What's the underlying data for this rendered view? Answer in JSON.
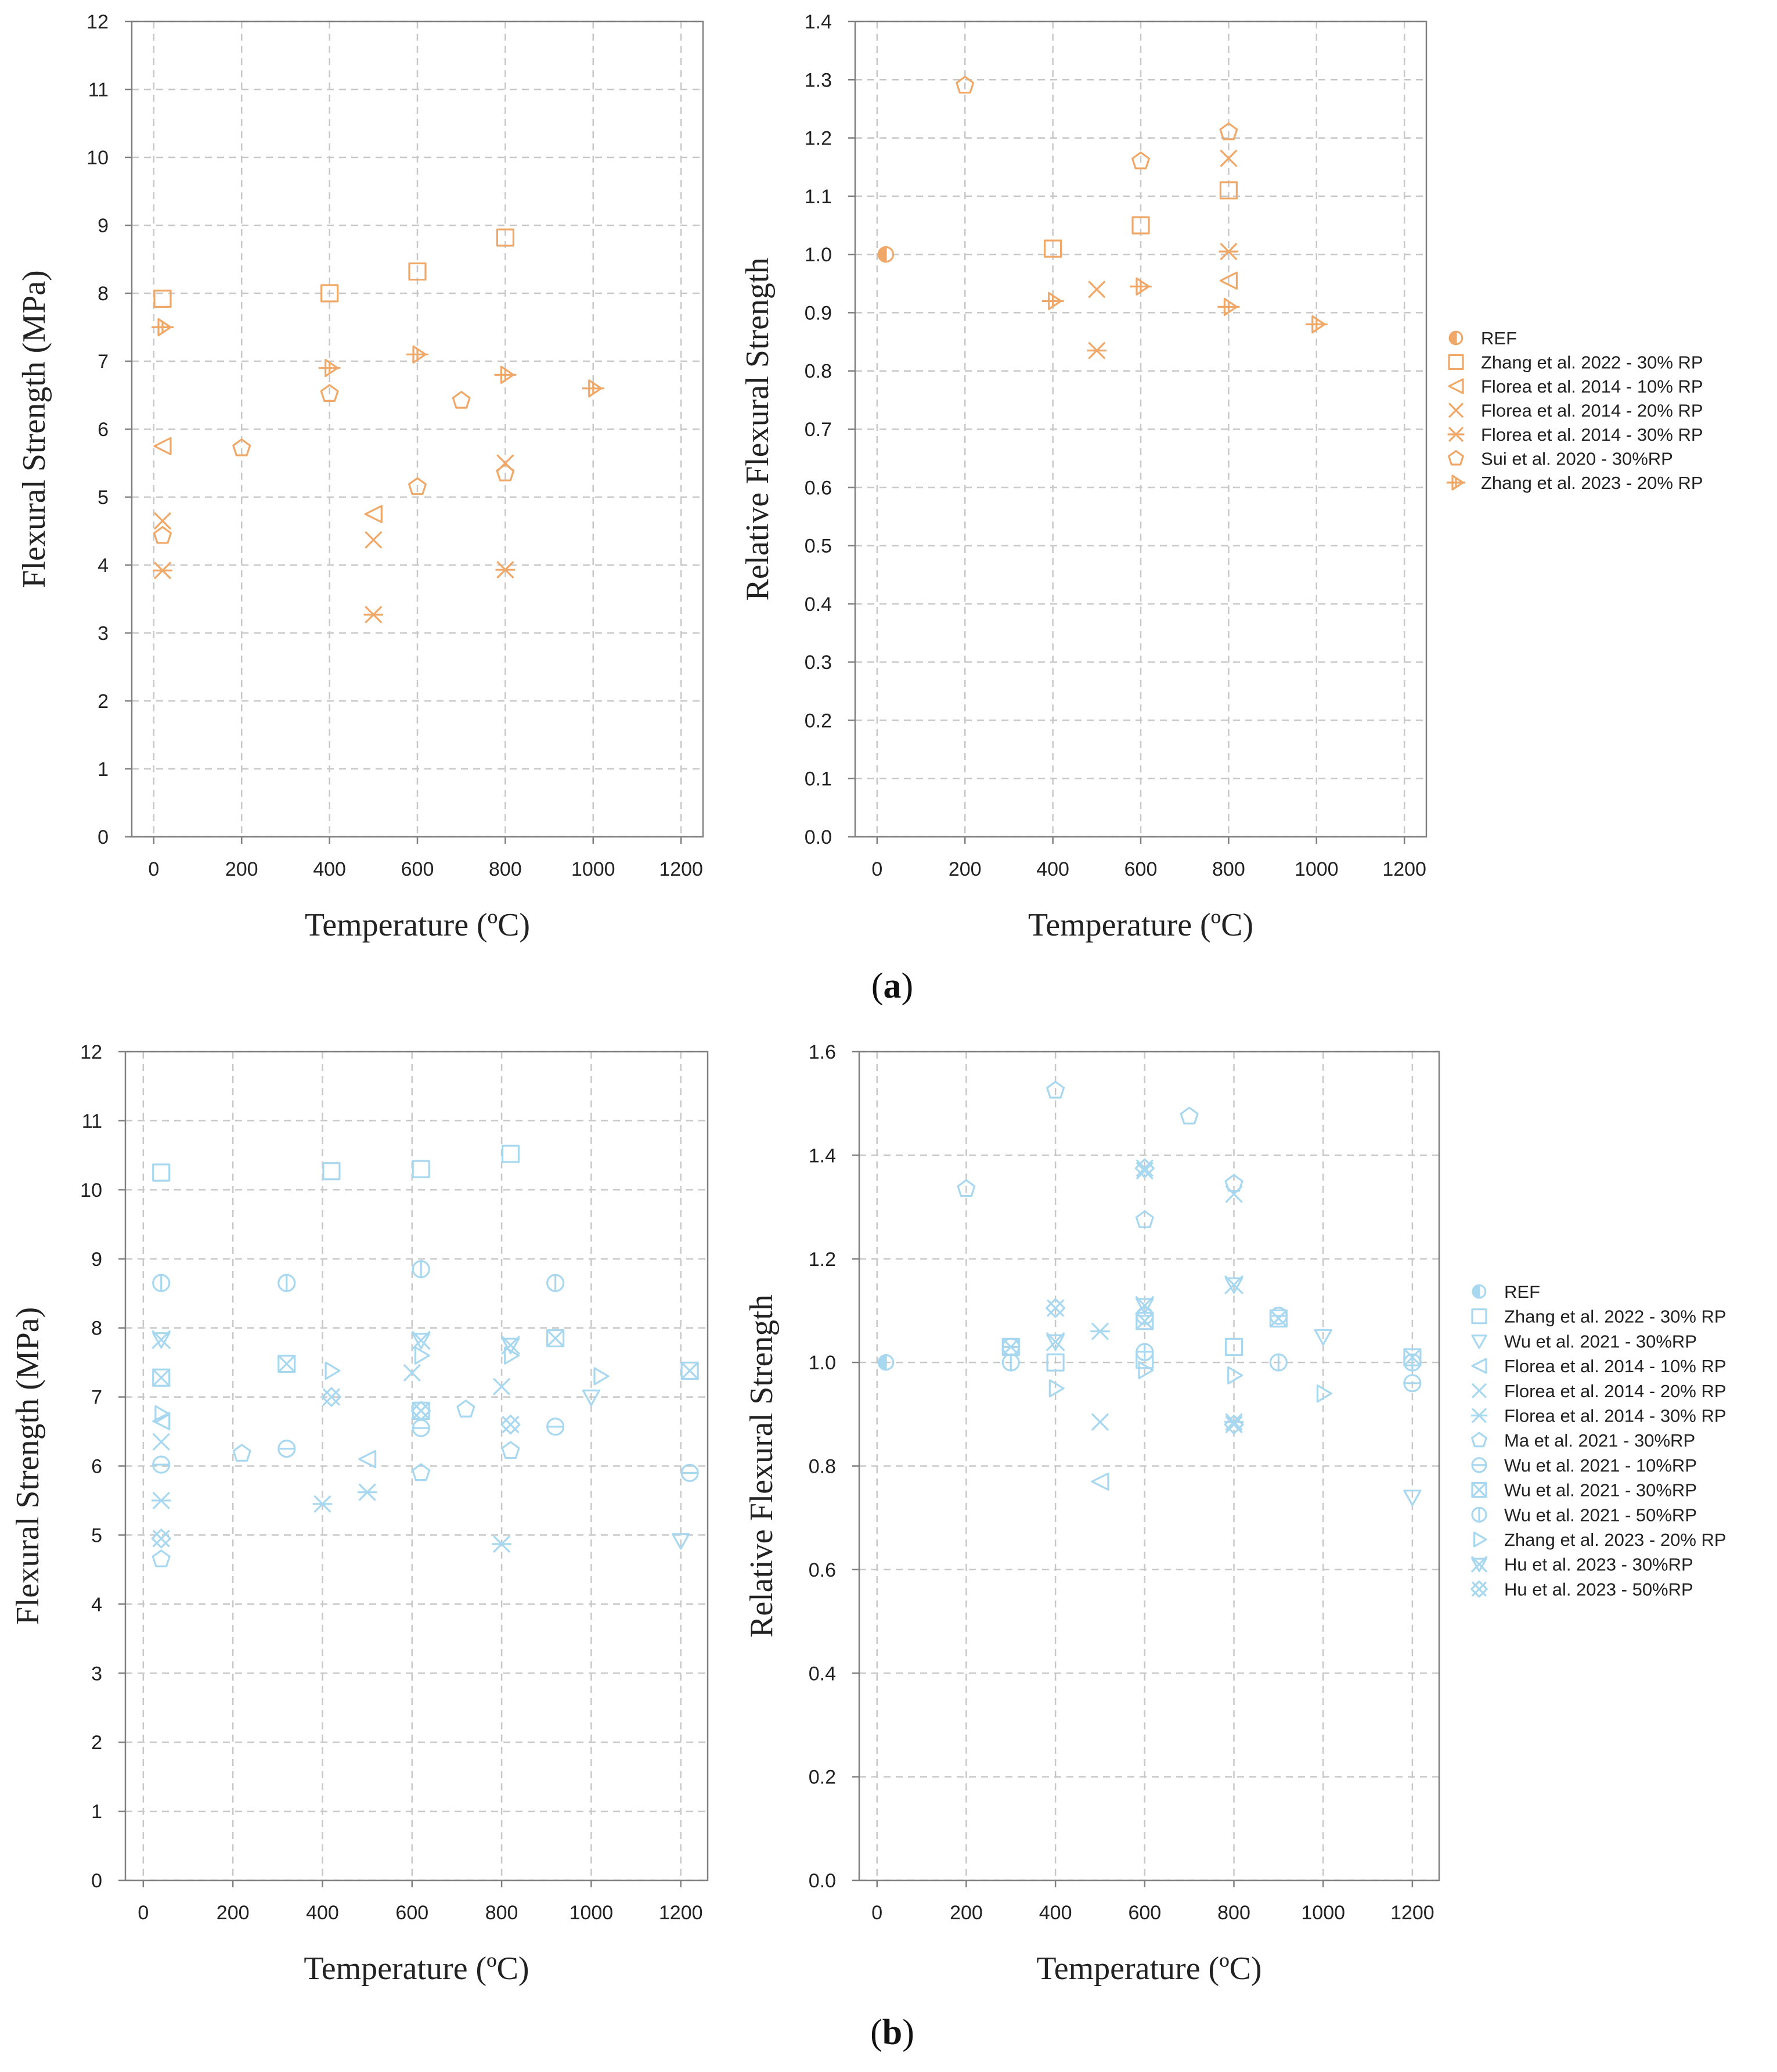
{
  "figure": {
    "panel_labels": [
      {
        "open": "(",
        "letter": "a",
        "close": ")"
      },
      {
        "open": "(",
        "letter": "b",
        "close": ")"
      }
    ],
    "colors": {
      "orange": "#F0A868",
      "blue": "#A8D8F0",
      "grid": "#c8c8c8",
      "frame": "#808080",
      "text": "#222222"
    }
  },
  "chart_data": [
    {
      "id": "a-left",
      "type": "scatter",
      "color": "#F0A868",
      "title": "",
      "xlabel": "Temperature (ºC)",
      "ylabel": "Flexural Strength (MPa)",
      "xlim": [
        -50,
        1250
      ],
      "ylim": [
        0,
        12
      ],
      "xticks": [
        0,
        200,
        400,
        600,
        800,
        1000,
        1200
      ],
      "xtick_labels": [
        "0",
        "200",
        "400",
        "600",
        "800",
        "1000",
        "1200"
      ],
      "yticks": [
        0,
        1,
        2,
        3,
        4,
        5,
        6,
        7,
        8,
        9,
        10,
        11,
        12
      ],
      "ytick_labels": [
        "0",
        "1",
        "2",
        "3",
        "4",
        "5",
        "6",
        "7",
        "8",
        "9",
        "10",
        "11",
        "12"
      ],
      "grid": true,
      "legend": null,
      "series": [
        {
          "name": "Zhang et al. 2022 - 30% RP",
          "marker": "square",
          "points": [
            [
              20,
              7.92
            ],
            [
              400,
              8.0
            ],
            [
              600,
              8.32
            ],
            [
              800,
              8.82
            ]
          ]
        },
        {
          "name": "Florea et al. 2014 - 10% RP",
          "marker": "triangle-left",
          "points": [
            [
              20,
              5.75
            ],
            [
              500,
              4.75
            ]
          ]
        },
        {
          "name": "Florea et al. 2014 - 20% RP",
          "marker": "x",
          "points": [
            [
              20,
              4.65
            ],
            [
              500,
              4.37
            ],
            [
              800,
              5.5
            ]
          ]
        },
        {
          "name": "Florea et al. 2014 - 30% RP",
          "marker": "asterisk",
          "points": [
            [
              20,
              3.92
            ],
            [
              500,
              3.27
            ],
            [
              800,
              3.93
            ]
          ]
        },
        {
          "name": "Sui et al. 2020 - 30%RP",
          "marker": "pentagon",
          "points": [
            [
              20,
              4.43
            ],
            [
              200,
              5.72
            ],
            [
              400,
              6.52
            ],
            [
              600,
              5.15
            ],
            [
              700,
              6.42
            ],
            [
              800,
              5.35
            ]
          ]
        },
        {
          "name": "Zhang et al. 2023 - 20% RP",
          "marker": "tri-flag",
          "points": [
            [
              20,
              7.5
            ],
            [
              400,
              6.9
            ],
            [
              600,
              7.1
            ],
            [
              800,
              6.8
            ],
            [
              1000,
              6.6
            ]
          ]
        }
      ]
    },
    {
      "id": "a-right",
      "type": "scatter",
      "color": "#F0A868",
      "title": "",
      "xlabel": "Temperature (ºC)",
      "ylabel": "Relative Flexural Strength",
      "xlim": [
        -50,
        1250
      ],
      "ylim": [
        0,
        1.4
      ],
      "xticks": [
        0,
        200,
        400,
        600,
        800,
        1000,
        1200
      ],
      "xtick_labels": [
        "0",
        "200",
        "400",
        "600",
        "800",
        "1000",
        "1200"
      ],
      "yticks": [
        0,
        0.1,
        0.2,
        0.3,
        0.4,
        0.5,
        0.6,
        0.7,
        0.8,
        0.9,
        1.0,
        1.1,
        1.2,
        1.3,
        1.4
      ],
      "ytick_labels": [
        "0.0",
        "0.1",
        "0.2",
        "0.3",
        "0.4",
        "0.5",
        "0.6",
        "0.7",
        "0.8",
        "0.9",
        "1.0",
        "1.1",
        "1.2",
        "1.3",
        "1.4"
      ],
      "grid": true,
      "legend": "right",
      "series": [
        {
          "name": "REF",
          "marker": "half-circle",
          "points": [
            [
              20,
              1.0
            ]
          ]
        },
        {
          "name": "Zhang et al. 2022 - 30% RP",
          "marker": "square",
          "points": [
            [
              400,
              1.01
            ],
            [
              600,
              1.05
            ],
            [
              800,
              1.11
            ]
          ]
        },
        {
          "name": "Florea et al. 2014 - 10% RP",
          "marker": "triangle-left",
          "points": [
            [
              800,
              0.955
            ]
          ]
        },
        {
          "name": "Florea et al. 2014 - 20% RP",
          "marker": "x",
          "points": [
            [
              500,
              0.94
            ],
            [
              800,
              1.165
            ]
          ]
        },
        {
          "name": "Florea et al. 2014 - 30% RP",
          "marker": "asterisk",
          "points": [
            [
              500,
              0.835
            ],
            [
              800,
              1.005
            ]
          ]
        },
        {
          "name": "Sui et al. 2020 - 30%RP",
          "marker": "pentagon",
          "points": [
            [
              200,
              1.29
            ],
            [
              600,
              1.16
            ],
            [
              800,
              1.21
            ]
          ]
        },
        {
          "name": "Zhang et al. 2023 - 20% RP",
          "marker": "tri-flag",
          "points": [
            [
              400,
              0.92
            ],
            [
              600,
              0.945
            ],
            [
              800,
              0.91
            ],
            [
              1000,
              0.88
            ]
          ]
        }
      ]
    },
    {
      "id": "b-left",
      "type": "scatter",
      "color": "#A8D8F0",
      "title": "",
      "xlabel": "Temperature (ºC)",
      "ylabel": "Flexural Strength (MPa)",
      "xlim": [
        -40,
        1260
      ],
      "ylim": [
        0,
        12
      ],
      "xticks": [
        0,
        200,
        400,
        600,
        800,
        1000,
        1200
      ],
      "xtick_labels": [
        "0",
        "200",
        "400",
        "600",
        "800",
        "1000",
        "1200"
      ],
      "yticks": [
        0,
        1,
        2,
        3,
        4,
        5,
        6,
        7,
        8,
        9,
        10,
        11,
        12
      ],
      "ytick_labels": [
        "0",
        "1",
        "2",
        "3",
        "4",
        "5",
        "6",
        "7",
        "8",
        "9",
        "10",
        "11",
        "12"
      ],
      "grid": true,
      "legend": null,
      "series": [
        {
          "name": "Zhang et al. 2022 - 30% RP",
          "marker": "square",
          "points": [
            [
              40,
              10.25
            ],
            [
              420,
              10.27
            ],
            [
              620,
              10.3
            ],
            [
              820,
              10.52
            ]
          ]
        },
        {
          "name": "Wu et al. 2021 - 30%RP",
          "marker": "triangle-down",
          "points": [
            [
              1000,
              7.0
            ],
            [
              1200,
              4.92
            ]
          ]
        },
        {
          "name": "Florea et al. 2014 - 10% RP",
          "marker": "triangle-left",
          "points": [
            [
              40,
              6.65
            ],
            [
              500,
              6.1
            ]
          ]
        },
        {
          "name": "Florea et al. 2014 - 20% RP",
          "marker": "x",
          "points": [
            [
              40,
              6.35
            ],
            [
              600,
              7.35
            ],
            [
              800,
              7.15
            ]
          ]
        },
        {
          "name": "Florea et al. 2014 - 30% RP",
          "marker": "asterisk",
          "points": [
            [
              40,
              5.5
            ],
            [
              400,
              5.45
            ],
            [
              500,
              5.62
            ],
            [
              800,
              4.87
            ]
          ]
        },
        {
          "name": "Ma et al. 2021 - 30%RP",
          "marker": "pentagon",
          "points": [
            [
              40,
              4.65
            ],
            [
              220,
              6.18
            ],
            [
              620,
              5.9
            ],
            [
              720,
              6.82
            ],
            [
              820,
              6.22
            ]
          ]
        },
        {
          "name": "Wu et al. 2021 - 10%RP",
          "marker": "circle-minus",
          "points": [
            [
              40,
              6.02
            ],
            [
              320,
              6.25
            ],
            [
              620,
              6.55
            ],
            [
              920,
              6.57
            ],
            [
              1220,
              5.9
            ]
          ]
        },
        {
          "name": "Wu et al. 2021 - 30%RP",
          "marker": "box-x",
          "points": [
            [
              40,
              7.28
            ],
            [
              320,
              7.48
            ],
            [
              620,
              6.8
            ],
            [
              920,
              7.85
            ],
            [
              1220,
              7.38
            ]
          ]
        },
        {
          "name": "Wu et al. 2021 - 50%RP",
          "marker": "circle-bar",
          "points": [
            [
              40,
              8.65
            ],
            [
              320,
              8.65
            ],
            [
              620,
              8.85
            ],
            [
              920,
              8.65
            ]
          ]
        },
        {
          "name": "Zhang et al. 2023 - 20% RP",
          "marker": "tri-right",
          "points": [
            [
              40,
              6.75
            ],
            [
              420,
              7.38
            ],
            [
              620,
              7.6
            ],
            [
              820,
              7.6
            ],
            [
              1020,
              7.3
            ]
          ]
        },
        {
          "name": "Hu et al. 2023 - 30%RP",
          "marker": "tri-down-x",
          "points": [
            [
              40,
              7.83
            ],
            [
              620,
              7.82
            ],
            [
              820,
              7.75
            ]
          ]
        },
        {
          "name": "Hu et al. 2023 - 50%RP",
          "marker": "diamond-x",
          "points": [
            [
              40,
              4.95
            ],
            [
              420,
              7.0
            ],
            [
              620,
              6.8
            ],
            [
              820,
              6.6
            ]
          ]
        }
      ]
    },
    {
      "id": "b-right",
      "type": "scatter",
      "color": "#A8D8F0",
      "title": "",
      "xlabel": "Temperature (ºC)",
      "ylabel": "Relative Flexural Strength",
      "xlim": [
        -40,
        1260
      ],
      "ylim": [
        0,
        1.6
      ],
      "xticks": [
        0,
        200,
        400,
        600,
        800,
        1000,
        1200
      ],
      "xtick_labels": [
        "0",
        "200",
        "400",
        "600",
        "800",
        "1000",
        "1200"
      ],
      "yticks": [
        0,
        0.2,
        0.4,
        0.6,
        0.8,
        1.0,
        1.2,
        1.4,
        1.6
      ],
      "ytick_labels": [
        "0.0",
        "0.2",
        "0.4",
        "0.6",
        "0.8",
        "1.0",
        "1.2",
        "1.4",
        "1.6"
      ],
      "grid": true,
      "legend": "right",
      "series": [
        {
          "name": "REF",
          "marker": "half-circle",
          "points": [
            [
              20,
              1.0
            ]
          ]
        },
        {
          "name": "Zhang et al. 2022 - 30% RP",
          "marker": "square",
          "points": [
            [
              400,
              1.0
            ],
            [
              600,
              1.005
            ],
            [
              800,
              1.03
            ]
          ]
        },
        {
          "name": "Wu et al. 2021 - 30%RP",
          "marker": "triangle-down",
          "points": [
            [
              1000,
              1.05
            ],
            [
              1200,
              0.74
            ]
          ]
        },
        {
          "name": "Florea et al. 2014 - 10% RP",
          "marker": "triangle-left",
          "points": [
            [
              500,
              0.77
            ]
          ]
        },
        {
          "name": "Florea et al. 2014 - 20% RP",
          "marker": "x",
          "points": [
            [
              500,
              0.885
            ],
            [
              600,
              1.37
            ],
            [
              800,
              1.325
            ]
          ]
        },
        {
          "name": "Florea et al. 2014 - 30% RP",
          "marker": "asterisk",
          "points": [
            [
              500,
              1.06
            ],
            [
              800,
              0.885
            ]
          ]
        },
        {
          "name": "Ma et al. 2021 - 30%RP",
          "marker": "pentagon",
          "points": [
            [
              200,
              1.335
            ],
            [
              400,
              1.525
            ],
            [
              600,
              1.275
            ],
            [
              700,
              1.475
            ],
            [
              800,
              1.345
            ]
          ]
        },
        {
          "name": "Wu et al. 2021 - 10%RP",
          "marker": "circle-minus",
          "points": [
            [
              300,
              1.03
            ],
            [
              600,
              1.09
            ],
            [
              900,
              1.09
            ],
            [
              1200,
              0.96
            ]
          ]
        },
        {
          "name": "Wu et al. 2021 - 30%RP",
          "marker": "box-x",
          "points": [
            [
              300,
              1.03
            ],
            [
              600,
              1.08
            ],
            [
              900,
              1.085
            ],
            [
              1200,
              1.01
            ]
          ]
        },
        {
          "name": "Wu et al. 2021 - 50%RP",
          "marker": "circle-bar",
          "points": [
            [
              300,
              1.0
            ],
            [
              600,
              1.02
            ],
            [
              900,
              1.0
            ],
            [
              1200,
              1.0
            ]
          ]
        },
        {
          "name": "Zhang et al. 2023 - 20% RP",
          "marker": "tri-right",
          "points": [
            [
              400,
              0.95
            ],
            [
              600,
              0.985
            ],
            [
              800,
              0.975
            ],
            [
              1000,
              0.94
            ]
          ]
        },
        {
          "name": "Hu et al. 2023 - 30%RP",
          "marker": "tri-down-x",
          "points": [
            [
              400,
              1.04
            ],
            [
              600,
              1.11
            ],
            [
              800,
              1.15
            ]
          ]
        },
        {
          "name": "Hu et al. 2023 - 50%RP",
          "marker": "diamond-x",
          "points": [
            [
              400,
              1.105
            ],
            [
              600,
              1.375
            ],
            [
              800,
              0.88
            ]
          ]
        }
      ]
    }
  ]
}
